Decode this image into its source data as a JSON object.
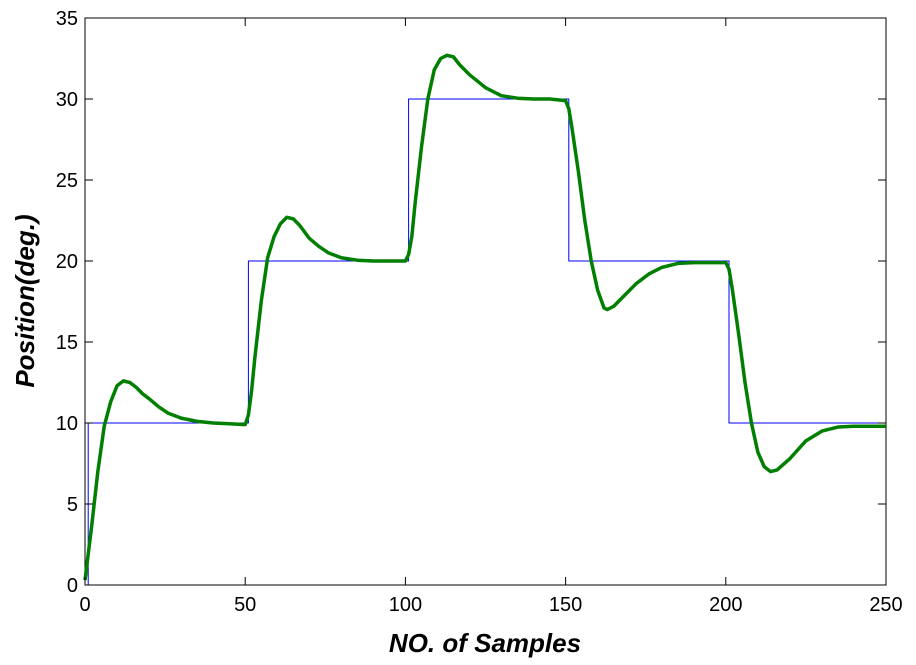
{
  "chart_data": {
    "type": "line",
    "title": "",
    "xlabel": "NO. of Samples",
    "ylabel": "Position(deg.)",
    "xlim": [
      0,
      250
    ],
    "ylim": [
      0,
      35
    ],
    "xticks": [
      0,
      50,
      100,
      150,
      200,
      250
    ],
    "yticks": [
      0,
      5,
      10,
      15,
      20,
      25,
      30,
      35
    ],
    "grid": false,
    "legend": "none",
    "series": [
      {
        "color": "#0000ff",
        "style": "step",
        "x": [
          0,
          1,
          1,
          51,
          51,
          101,
          101,
          151,
          151,
          201,
          201,
          250
        ],
        "y": [
          0,
          0,
          10,
          10,
          20,
          20,
          30,
          30,
          20,
          20,
          10,
          10
        ]
      },
      {
        "color": "#007f00",
        "style": "line",
        "x": [
          0,
          2,
          4,
          6,
          8,
          10,
          12,
          14,
          16,
          18,
          20,
          23,
          26,
          30,
          35,
          40,
          45,
          50,
          51,
          52,
          53,
          55,
          57,
          59,
          61,
          63,
          65,
          67,
          70,
          73,
          76,
          80,
          85,
          90,
          95,
          100,
          101,
          102,
          103,
          105,
          107,
          109,
          111,
          113,
          115,
          117,
          120,
          125,
          130,
          135,
          140,
          145,
          150,
          151,
          152,
          154,
          156,
          158,
          160,
          162,
          163,
          165,
          168,
          172,
          176,
          180,
          185,
          190,
          195,
          200,
          201,
          202,
          204,
          206,
          208,
          210,
          212,
          214,
          216,
          220,
          225,
          230,
          235,
          240,
          245,
          250
        ],
        "y": [
          0.3,
          3.5,
          7.0,
          9.8,
          11.3,
          12.3,
          12.6,
          12.5,
          12.2,
          11.8,
          11.5,
          11.0,
          10.6,
          10.3,
          10.1,
          10.0,
          9.95,
          9.9,
          10.5,
          12.0,
          14.0,
          17.5,
          20.2,
          21.5,
          22.3,
          22.7,
          22.6,
          22.2,
          21.4,
          20.9,
          20.5,
          20.2,
          20.05,
          20.0,
          20.0,
          20.0,
          20.4,
          21.5,
          23.5,
          27.0,
          30.0,
          31.8,
          32.5,
          32.7,
          32.6,
          32.1,
          31.5,
          30.7,
          30.2,
          30.05,
          30.0,
          30.0,
          29.9,
          29.4,
          28.2,
          25.5,
          22.5,
          20.0,
          18.2,
          17.1,
          17.0,
          17.2,
          17.8,
          18.6,
          19.2,
          19.6,
          19.85,
          19.9,
          19.9,
          19.9,
          19.5,
          18.3,
          15.5,
          12.5,
          10.0,
          8.2,
          7.3,
          7.0,
          7.1,
          7.8,
          8.9,
          9.5,
          9.75,
          9.8,
          9.8,
          9.8
        ]
      }
    ]
  }
}
